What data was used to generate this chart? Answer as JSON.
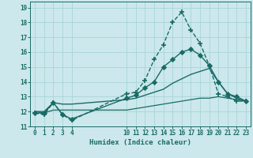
{
  "xlabel": "Humidex (Indice chaleur)",
  "background_color": "#cce8ec",
  "grid_color": "#a8d4d8",
  "line_color": "#1a6b65",
  "xlim": [
    -0.5,
    23.5
  ],
  "ylim": [
    11,
    19.4
  ],
  "xticks": [
    0,
    1,
    2,
    3,
    4,
    10,
    11,
    12,
    13,
    14,
    15,
    16,
    17,
    18,
    19,
    20,
    21,
    22,
    23
  ],
  "yticks": [
    11,
    12,
    13,
    14,
    15,
    16,
    17,
    18,
    19
  ],
  "series": [
    {
      "x": [
        0,
        1,
        2,
        3,
        4,
        10,
        11,
        12,
        13,
        14,
        15,
        16,
        17,
        18,
        19,
        20,
        21,
        22,
        23
      ],
      "y": [
        11.9,
        11.8,
        12.6,
        11.8,
        11.4,
        13.2,
        13.3,
        14.1,
        15.5,
        16.5,
        18.0,
        18.7,
        17.5,
        16.6,
        15.1,
        13.2,
        13.0,
        12.7,
        12.7
      ],
      "marker": "+",
      "markersize": 4,
      "linestyle": "--",
      "linewidth": 1.0
    },
    {
      "x": [
        0,
        1,
        2,
        3,
        4,
        10,
        11,
        12,
        13,
        14,
        15,
        16,
        17,
        18,
        19,
        20,
        21,
        22,
        23
      ],
      "y": [
        11.9,
        11.9,
        12.6,
        11.8,
        11.5,
        12.9,
        13.1,
        13.6,
        14.0,
        15.0,
        15.5,
        16.0,
        16.2,
        15.8,
        15.1,
        14.0,
        13.2,
        13.0,
        12.7
      ],
      "marker": "D",
      "markersize": 2.5,
      "linestyle": "-",
      "linewidth": 1.0
    },
    {
      "x": [
        0,
        1,
        2,
        3,
        4,
        10,
        11,
        12,
        13,
        14,
        15,
        16,
        17,
        18,
        19,
        20,
        21,
        22,
        23
      ],
      "y": [
        12.0,
        12.0,
        12.6,
        12.5,
        12.5,
        12.8,
        12.9,
        13.1,
        13.3,
        13.5,
        13.9,
        14.2,
        14.5,
        14.7,
        14.9,
        14.0,
        13.2,
        12.9,
        12.7
      ],
      "marker": null,
      "markersize": 0,
      "linestyle": "-",
      "linewidth": 1.0
    },
    {
      "x": [
        0,
        1,
        2,
        3,
        4,
        10,
        11,
        12,
        13,
        14,
        15,
        16,
        17,
        18,
        19,
        20,
        21,
        22,
        23
      ],
      "y": [
        12.0,
        11.9,
        12.1,
        12.1,
        12.1,
        12.1,
        12.2,
        12.3,
        12.4,
        12.5,
        12.6,
        12.7,
        12.8,
        12.9,
        12.9,
        13.0,
        12.9,
        12.8,
        12.7
      ],
      "marker": null,
      "markersize": 0,
      "linestyle": "-",
      "linewidth": 0.9
    }
  ]
}
